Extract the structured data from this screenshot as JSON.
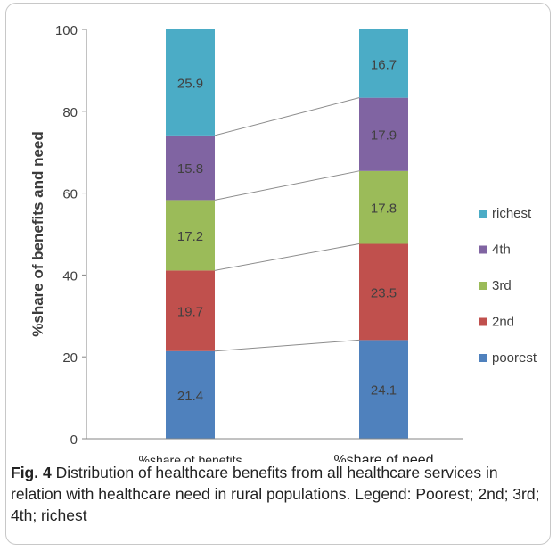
{
  "chart_data": {
    "type": "bar",
    "stacked": true,
    "categories": [
      "%share of benefits",
      "%share of need"
    ],
    "series": [
      {
        "name": "poorest",
        "color": "#4f81bd",
        "values": [
          21.4,
          24.1
        ]
      },
      {
        "name": "2nd",
        "color": "#c0504d",
        "values": [
          19.7,
          23.5
        ]
      },
      {
        "name": "3rd",
        "color": "#9bbb59",
        "values": [
          17.2,
          17.8
        ]
      },
      {
        "name": "4th",
        "color": "#8064a2",
        "values": [
          15.8,
          17.9
        ]
      },
      {
        "name": "richest",
        "color": "#4bacc6",
        "values": [
          25.9,
          16.7
        ]
      }
    ],
    "ylabel": "%share of benefits and need",
    "xlabel": "",
    "ylim": [
      0,
      100
    ],
    "yticks": [
      0,
      20,
      40,
      60,
      80,
      100
    ],
    "grid": false,
    "legend_position": "right",
    "connector_lines": true
  },
  "caption": {
    "label": "Fig. 4",
    "text": " Distribution of healthcare benefits from all healthcare services in relation with healthcare need in rural populations. Legend: Poorest; 2nd; 3rd; 4th; richest"
  }
}
